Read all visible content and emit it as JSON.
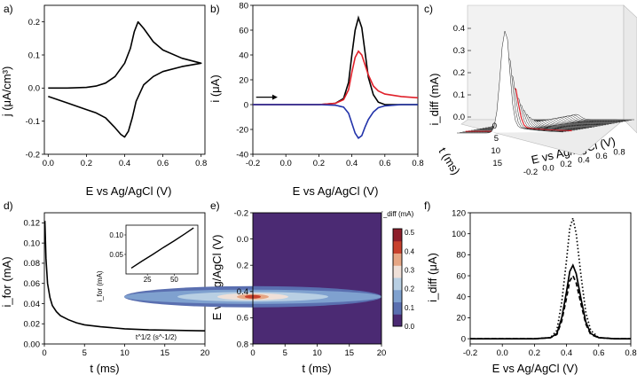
{
  "colors": {
    "black": "#000000",
    "red": "#e0202a",
    "blue": "#2233aa",
    "heat_low": "#4b2a73",
    "heat_high": "#c8412d"
  },
  "chart_data": [
    {
      "panel": "a)",
      "type": "line",
      "xlabel": "E vs Ag/AgCl (V)",
      "ylabel": "j (μA/cm³)",
      "xlim": [
        -0.02,
        0.82
      ],
      "ylim": [
        -0.2,
        0.25
      ],
      "xticks": [
        "0.0",
        "0.2",
        "0.4",
        "0.6",
        "0.8"
      ],
      "yticks": [
        "-0.2",
        "-0.1",
        "0.0",
        "0.1",
        "0.2"
      ],
      "xtick_values": [
        0,
        0.2,
        0.4,
        0.6,
        0.8
      ],
      "ytick_values": [
        -0.2,
        -0.1,
        0,
        0.1,
        0.2
      ],
      "series": [
        {
          "x": [
            0,
            0.1,
            0.2,
            0.25,
            0.3,
            0.35,
            0.4,
            0.43,
            0.45,
            0.47,
            0.5,
            0.55,
            0.6,
            0.7,
            0.8,
            0.7,
            0.6,
            0.55,
            0.5,
            0.46,
            0.44,
            0.42,
            0.4,
            0.38,
            0.35,
            0.3,
            0.25,
            0.2,
            0.1,
            0
          ],
          "y": [
            0,
            0,
            0.002,
            0.006,
            0.015,
            0.035,
            0.075,
            0.12,
            0.17,
            0.2,
            0.18,
            0.14,
            0.115,
            0.09,
            0.075,
            0.065,
            0.05,
            0.035,
            0.01,
            -0.04,
            -0.09,
            -0.13,
            -0.148,
            -0.14,
            -0.12,
            -0.09,
            -0.075,
            -0.065,
            -0.045,
            -0.025
          ],
          "color": "#000000"
        }
      ]
    },
    {
      "panel": "b)",
      "type": "line",
      "xlabel": "E vs Ag/AgCl (V)",
      "ylabel": "i (μA)",
      "xlim": [
        -0.2,
        0.8
      ],
      "ylim": [
        -40,
        80
      ],
      "xticks": [
        "-0.2",
        "0.0",
        "0.2",
        "0.4",
        "0.6",
        "0.8"
      ],
      "yticks": [
        "-40",
        "-20",
        "0",
        "20",
        "40",
        "60",
        "80"
      ],
      "xtick_values": [
        -0.2,
        0,
        0.2,
        0.4,
        0.6,
        0.8
      ],
      "ytick_values": [
        -40,
        -20,
        0,
        20,
        40,
        60,
        80
      ],
      "arrow": {
        "x0": -0.18,
        "x1": -0.05,
        "y": 6
      },
      "series": [
        {
          "x": [
            -0.2,
            0.2,
            0.3,
            0.35,
            0.38,
            0.4,
            0.42,
            0.44,
            0.46,
            0.48,
            0.5,
            0.53,
            0.56,
            0.6,
            0.7,
            0.8
          ],
          "y": [
            0,
            0,
            1,
            5,
            18,
            40,
            60,
            70,
            62,
            42,
            22,
            8,
            2,
            0,
            0,
            0
          ],
          "color": "#000000"
        },
        {
          "x": [
            -0.2,
            0.2,
            0.3,
            0.35,
            0.38,
            0.4,
            0.42,
            0.44,
            0.46,
            0.48,
            0.5,
            0.53,
            0.56,
            0.6,
            0.7,
            0.8
          ],
          "y": [
            0,
            0,
            1,
            4,
            12,
            26,
            38,
            43,
            40,
            32,
            24,
            15,
            11,
            8.5,
            6.5,
            5.5
          ],
          "color": "#e0202a"
        },
        {
          "x": [
            -0.2,
            0.2,
            0.3,
            0.35,
            0.38,
            0.4,
            0.42,
            0.44,
            0.46,
            0.48,
            0.5,
            0.53,
            0.56,
            0.6,
            0.7,
            0.8
          ],
          "y": [
            0,
            0,
            -0.5,
            -2,
            -7,
            -15,
            -23,
            -27,
            -25,
            -18,
            -12,
            -6,
            -2.5,
            -1,
            0,
            0
          ],
          "color": "#2233aa"
        }
      ]
    },
    {
      "panel": "c)",
      "type": "area",
      "xlabel": "E vs Ag/AgCl (V)",
      "ylabel": "i_diff (mA)",
      "zlabel": "t (ms)",
      "xticks": [
        "-0.2",
        "0.0",
        "0.2",
        "0.4",
        "0.6",
        "0.8"
      ],
      "yticks": [
        "0.0",
        "0.1",
        "0.2",
        "0.3",
        "0.4"
      ],
      "tticks": [
        "0",
        "5",
        "10",
        "15"
      ]
    },
    {
      "panel": "d)",
      "type": "line",
      "xlabel": "t (ms)",
      "ylabel": "i_for (mA)",
      "xlim": [
        0,
        20
      ],
      "ylim": [
        0,
        0.13
      ],
      "xticks": [
        "0",
        "5",
        "10",
        "15",
        "20"
      ],
      "yticks": [
        "0.00",
        "0.02",
        "0.04",
        "0.06",
        "0.08",
        "0.10",
        "0.12"
      ],
      "xtick_values": [
        0,
        5,
        10,
        15,
        20
      ],
      "ytick_values": [
        0,
        0.02,
        0.04,
        0.06,
        0.08,
        0.1,
        0.12
      ],
      "series": [
        {
          "x": [
            0.07,
            0.2,
            0.4,
            0.7,
            1,
            1.5,
            2,
            3,
            4,
            5,
            7,
            10,
            13,
            16,
            20
          ],
          "y": [
            0.122,
            0.085,
            0.06,
            0.046,
            0.038,
            0.032,
            0.028,
            0.024,
            0.021,
            0.019,
            0.017,
            0.015,
            0.014,
            0.0135,
            0.013
          ],
          "color": "#000000"
        }
      ],
      "inset": {
        "xlabel": "t^1/2 (s^-1/2)",
        "ylabel": "i_for (mA)",
        "xlim": [
          5,
          72
        ],
        "ylim": [
          0,
          0.125
        ],
        "xticks": [
          "25",
          "50"
        ],
        "yticks": [
          "0.05",
          "0.10"
        ],
        "xtick_values": [
          25,
          50
        ],
        "ytick_values": [
          0.05,
          0.1
        ],
        "x": [
          10,
          20,
          30,
          40,
          50,
          60,
          68
        ],
        "y": [
          0.015,
          0.033,
          0.05,
          0.068,
          0.085,
          0.103,
          0.118
        ]
      }
    },
    {
      "panel": "e)",
      "type": "heatmap",
      "xlabel": "t (ms)",
      "ylabel": "E vs Ag/AgCl (V)",
      "colorbar_label": "i_diff (mA)",
      "xlim": [
        0,
        20
      ],
      "ylim": [
        -0.2,
        0.8
      ],
      "xticks": [
        "0",
        "5",
        "10",
        "15",
        "20"
      ],
      "yticks": [
        "-0.2",
        "0.0",
        "0.2",
        "0.4",
        "0.6",
        "0.8"
      ],
      "xtick_values": [
        0,
        5,
        10,
        15,
        20
      ],
      "ytick_values": [
        -0.2,
        0,
        0.2,
        0.4,
        0.6,
        0.8
      ],
      "colorbar_ticks": [
        "0.0",
        "0.1",
        "0.2",
        "0.3",
        "0.4",
        "0.5"
      ],
      "colorbar_tick_values": [
        0,
        0.1,
        0.2,
        0.3,
        0.4,
        0.5
      ],
      "peak_E": 0.44
    },
    {
      "panel": "f)",
      "type": "line",
      "xlabel": "E vs Ag/AgCl (V)",
      "ylabel": "i_diff (μA)",
      "xlim": [
        -0.2,
        0.8
      ],
      "ylim": [
        -5,
        120
      ],
      "xticks": [
        "-0.2",
        "0.0",
        "0.2",
        "0.4",
        "0.6",
        "0.8"
      ],
      "yticks": [
        "0",
        "20",
        "40",
        "60",
        "80",
        "100",
        "120"
      ],
      "xtick_values": [
        -0.2,
        0,
        0.2,
        0.4,
        0.6,
        0.8
      ],
      "ytick_values": [
        0,
        20,
        40,
        60,
        80,
        100,
        120
      ],
      "series": [
        {
          "style": "dotted",
          "x": [
            -0.2,
            0.2,
            0.3,
            0.34,
            0.37,
            0.4,
            0.42,
            0.44,
            0.46,
            0.49,
            0.52,
            0.55,
            0.6,
            0.7,
            0.8
          ],
          "y": [
            0,
            0,
            1,
            8,
            35,
            75,
            105,
            115,
            100,
            60,
            25,
            8,
            1,
            0,
            0
          ],
          "color": "#000000"
        },
        {
          "style": "solid",
          "x": [
            -0.2,
            0.2,
            0.3,
            0.34,
            0.37,
            0.4,
            0.42,
            0.44,
            0.46,
            0.49,
            0.52,
            0.55,
            0.6,
            0.7,
            0.8
          ],
          "y": [
            0,
            0,
            1,
            5,
            20,
            45,
            64,
            70,
            62,
            38,
            16,
            5,
            1,
            0,
            0
          ],
          "color": "#000000"
        },
        {
          "style": "dashed",
          "x": [
            -0.2,
            0.2,
            0.3,
            0.34,
            0.37,
            0.4,
            0.42,
            0.44,
            0.46,
            0.49,
            0.52,
            0.55,
            0.6,
            0.7,
            0.8
          ],
          "y": [
            0,
            0,
            1,
            4,
            17,
            39,
            55,
            60,
            53,
            33,
            14,
            4,
            1,
            0,
            0
          ],
          "color": "#000000"
        }
      ]
    }
  ]
}
